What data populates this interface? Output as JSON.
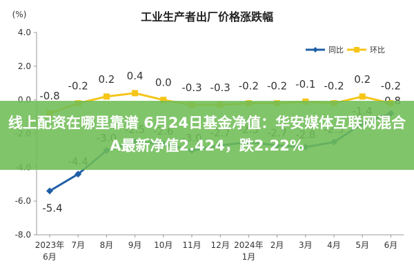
{
  "chart_data": {
    "type": "line",
    "title": "工业生产者出厂价格涨跌幅",
    "unit_label": "(%)",
    "categories": [
      "2023年\n6月",
      "7月",
      "8月",
      "9月",
      "10月",
      "11月",
      "12月",
      "2024年\n1月",
      "2月",
      "3月",
      "4月",
      "5月",
      "6月"
    ],
    "ylim": [
      -8.0,
      4.0
    ],
    "yticks": [
      "4.0",
      "2.0",
      "0.0",
      "-2.0",
      "-4.0",
      "-6.0",
      "-8.0"
    ],
    "grid": false,
    "legend_position": "top-right",
    "series": [
      {
        "name": "同比",
        "color": "#1f5fa6",
        "values": [
          -5.4,
          -4.4,
          -3.0,
          -2.5,
          -2.6,
          -3.0,
          -2.7,
          -2.5,
          -2.7,
          -2.8,
          -2.5,
          -1.4,
          -0.8
        ],
        "labels": [
          "-5.4",
          "-4.4",
          "-3.0",
          "-2.5",
          "-2.6",
          "-3.0",
          "-2.7",
          "-2.5",
          "-2.7",
          "-2.8",
          "-2.5",
          "-1.4",
          "-0.8"
        ]
      },
      {
        "name": "环比",
        "color": "#f5c518",
        "values": [
          -0.8,
          -0.2,
          0.2,
          0.4,
          0.0,
          -0.3,
          -0.3,
          -0.2,
          -0.2,
          -0.1,
          -0.2,
          0.2,
          -0.2
        ],
        "labels": [
          "-0.8",
          "-0.2",
          "0.2",
          "0.4",
          "0.0",
          "-0.3",
          "-0.3",
          "-0.2",
          "-0.2",
          "-0.1",
          "-0.2",
          "0.2",
          "-0.2"
        ]
      }
    ]
  },
  "overlay": {
    "text": "线上配资在哪里靠谱 6月24日基金净值：华安媒体互联网混合A最新净值2.424，跌2.22%",
    "color": "#70bd56"
  }
}
